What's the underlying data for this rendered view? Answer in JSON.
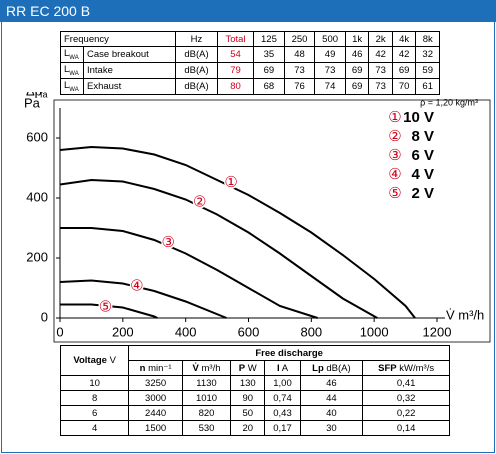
{
  "header": {
    "title": "RR EC 200 B"
  },
  "sound_table": {
    "columns": [
      "Frequency",
      "Hz",
      "Total",
      "125",
      "250",
      "500",
      "1k",
      "2k",
      "4k",
      "8k"
    ],
    "rows": [
      {
        "label": "L",
        "label_sub": "WA",
        "name": "Case breakout",
        "unit": "dB(A)",
        "values": [
          54,
          35,
          48,
          49,
          46,
          42,
          42,
          32
        ]
      },
      {
        "label": "L",
        "label_sub": "WA",
        "name": "Intake",
        "unit": "dB(A)",
        "values": [
          79,
          69,
          73,
          73,
          69,
          73,
          69,
          59
        ]
      },
      {
        "label": "L",
        "label_sub": "WA",
        "name": "Exhaust",
        "unit": "dB(A)",
        "values": [
          80,
          68,
          76,
          74,
          69,
          73,
          70,
          61
        ]
      }
    ]
  },
  "chart_data": {
    "type": "line",
    "ylabel": "Δp",
    "ylabel_sub": "fa",
    "ylabel_unit": "Pa",
    "xlabel": "V̇ m³/h",
    "annotation": "ρ = 1,20 kg/m³",
    "xlim": [
      0,
      1200
    ],
    "ylim": [
      0,
      700
    ],
    "xticks": [
      0,
      200,
      400,
      600,
      800,
      1000,
      1200
    ],
    "yticks": [
      0,
      200,
      400,
      600
    ],
    "series": [
      {
        "name": "10 V",
        "marker": "①",
        "color": "#000000",
        "x": [
          0,
          100,
          200,
          300,
          400,
          500,
          600,
          700,
          800,
          900,
          1000,
          1100,
          1130
        ],
        "values": [
          560,
          570,
          565,
          545,
          510,
          460,
          410,
          350,
          285,
          210,
          130,
          40,
          0
        ]
      },
      {
        "name": "8 V",
        "marker": "②",
        "color": "#000000",
        "x": [
          0,
          100,
          200,
          300,
          400,
          500,
          600,
          700,
          800,
          900,
          1010
        ],
        "values": [
          445,
          460,
          455,
          430,
          395,
          345,
          285,
          215,
          140,
          65,
          0
        ]
      },
      {
        "name": "6 V",
        "marker": "③",
        "color": "#000000",
        "x": [
          0,
          100,
          200,
          300,
          400,
          500,
          600,
          700,
          820
        ],
        "values": [
          300,
          300,
          290,
          260,
          215,
          160,
          100,
          40,
          0
        ]
      },
      {
        "name": "4 V",
        "marker": "④",
        "color": "#000000",
        "x": [
          0,
          100,
          200,
          300,
          400,
          530
        ],
        "values": [
          120,
          125,
          115,
          90,
          55,
          0
        ]
      },
      {
        "name": "2 V",
        "marker": "⑤",
        "color": "#000000",
        "x": [
          0,
          100,
          200,
          300,
          310
        ],
        "values": [
          45,
          45,
          35,
          5,
          0
        ]
      }
    ]
  },
  "performance_table": {
    "group_header": "Free discharge",
    "columns": [
      {
        "name": "Voltage",
        "unit": "V"
      },
      {
        "name": "n",
        "unit": "min⁻¹"
      },
      {
        "name": "V̇",
        "unit": "m³/h"
      },
      {
        "name": "P",
        "unit": "W"
      },
      {
        "name": "I",
        "unit": "A"
      },
      {
        "name": "Lp",
        "unit": "dB(A)"
      },
      {
        "name": "SFP",
        "unit": "kW/m³/s"
      }
    ],
    "rows": [
      [
        10,
        3250,
        1130,
        130,
        "1,00",
        46,
        "0,41"
      ],
      [
        8,
        3000,
        1010,
        90,
        "0,74",
        44,
        "0,32"
      ],
      [
        6,
        2440,
        820,
        50,
        "0,43",
        40,
        "0,22"
      ],
      [
        4,
        1500,
        530,
        20,
        "0,17",
        30,
        "0,14"
      ]
    ]
  }
}
